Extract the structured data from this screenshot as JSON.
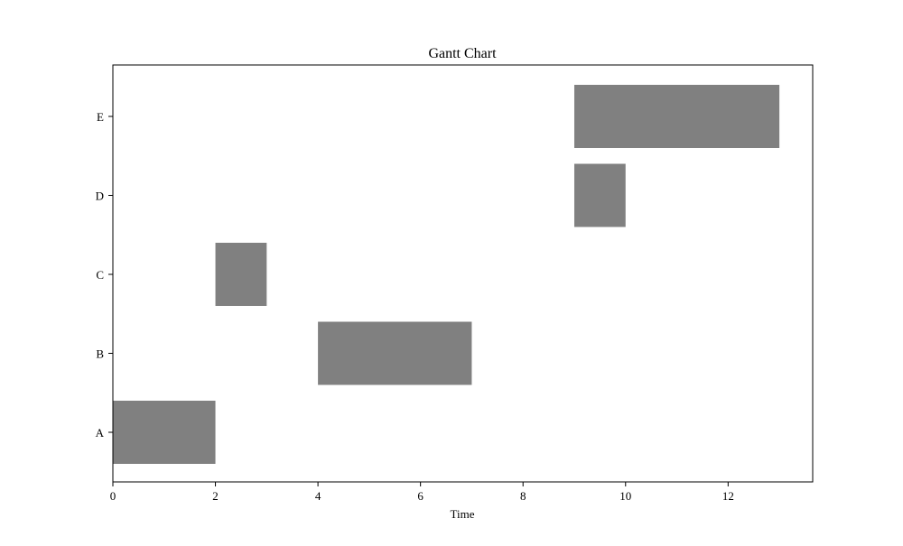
{
  "chart_data": {
    "type": "bar",
    "orientation": "horizontal",
    "subtype": "gantt",
    "title": "Gantt Chart",
    "xlabel": "Time",
    "ylabel": "",
    "xlim": [
      0,
      13.65
    ],
    "xticks": [
      0,
      2,
      4,
      6,
      8,
      10,
      12
    ],
    "categories": [
      "A",
      "B",
      "C",
      "D",
      "E"
    ],
    "tasks": [
      {
        "task": "A",
        "start": 0,
        "end": 2
      },
      {
        "task": "B",
        "start": 4,
        "end": 7
      },
      {
        "task": "C",
        "start": 2,
        "end": 3
      },
      {
        "task": "D",
        "start": 9,
        "end": 10
      },
      {
        "task": "E",
        "start": 9,
        "end": 13
      }
    ],
    "bar_color": "#808080",
    "grid": false,
    "legend": "none"
  }
}
